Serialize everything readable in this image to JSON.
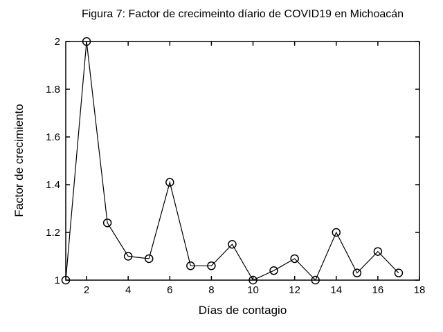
{
  "chart_data": {
    "type": "line",
    "title": "Figura 7: Factor de crecimeinto díario de COVID19 en Michoacán",
    "xlabel": "Días de contagio",
    "ylabel": "Factor de crecimiento",
    "x": [
      1,
      2,
      3,
      4,
      5,
      6,
      7,
      8,
      9,
      10,
      11,
      12,
      13,
      14,
      15,
      16,
      17
    ],
    "y": [
      1.0,
      2.0,
      1.24,
      1.1,
      1.09,
      1.41,
      1.06,
      1.06,
      1.15,
      1.0,
      1.04,
      1.09,
      1.0,
      1.2,
      1.03,
      1.12,
      1.03
    ],
    "xlim": [
      1,
      18
    ],
    "ylim": [
      1,
      2
    ],
    "xticks": [
      2,
      4,
      6,
      8,
      10,
      12,
      14,
      16,
      18
    ],
    "yticks": [
      1,
      1.2,
      1.4,
      1.6,
      1.8,
      2
    ],
    "ytick_labels": [
      "1",
      "1.2",
      "1.4",
      "1.6",
      "1.8",
      "2"
    ],
    "marker": "open-circle",
    "line_color": "#000000",
    "marker_color": "#000000",
    "axes_color": "#000000",
    "background_color": "#ffffff",
    "grid": false,
    "box": true,
    "tick_direction": "in"
  }
}
